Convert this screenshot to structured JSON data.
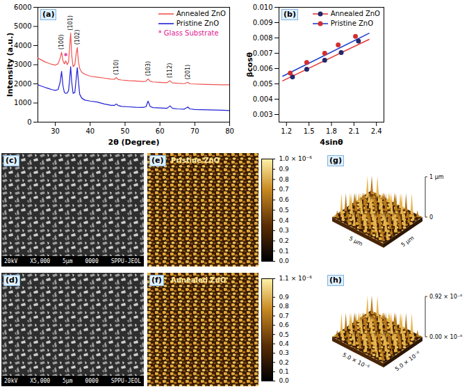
{
  "chart_data": [
    {
      "type": "line",
      "panel_label": "(a)",
      "x_label": "2θ (Degree)",
      "y_label": "Intensity (a.u.)",
      "x": [
        25,
        26,
        27,
        28,
        29,
        30,
        30.8,
        31.4,
        31.8,
        32.2,
        32.6,
        33.0,
        33.4,
        33.8,
        34.1,
        34.4,
        34.7,
        35.1,
        35.6,
        36.0,
        36.3,
        36.6,
        37.0,
        37.6,
        38.5,
        40,
        42,
        44,
        46,
        47,
        47.5,
        48,
        49,
        51,
        53,
        55,
        56,
        56.6,
        57.2,
        58,
        60,
        62,
        62.9,
        63.6,
        65,
        67,
        68,
        68.6,
        70,
        72,
        74,
        76,
        78,
        80
      ],
      "series": [
        {
          "name": "Annealed ZnO",
          "color": "#f0524f",
          "values": [
            3350,
            3250,
            3150,
            3080,
            3020,
            2980,
            3050,
            3350,
            3650,
            3200,
            3050,
            3200,
            3000,
            3150,
            3900,
            4650,
            3500,
            2900,
            3000,
            3600,
            3900,
            3200,
            2800,
            2600,
            2500,
            2400,
            2350,
            2300,
            2250,
            2240,
            2330,
            2230,
            2200,
            2170,
            2150,
            2120,
            2130,
            2260,
            2140,
            2100,
            2080,
            2060,
            2160,
            2050,
            2030,
            2010,
            2080,
            2000,
            1990,
            1980,
            1970,
            1960,
            1950,
            1950
          ]
        },
        {
          "name": "Pristine ZnO",
          "color": "#1f1fd6",
          "values": [
            1950,
            1880,
            1820,
            1760,
            1700,
            1660,
            1700,
            2100,
            2650,
            1900,
            1550,
            1500,
            1520,
            1650,
            2200,
            2900,
            2100,
            1500,
            1550,
            2300,
            2850,
            2200,
            1450,
            1250,
            1150,
            1100,
            1050,
            950,
            880,
            880,
            950,
            870,
            820,
            800,
            780,
            770,
            800,
            1100,
            820,
            760,
            740,
            720,
            850,
            720,
            690,
            680,
            790,
            690,
            660,
            650,
            640,
            630,
            620,
            600
          ]
        }
      ],
      "xlim": [
        25,
        80
      ],
      "xticks": [
        30,
        40,
        50,
        60,
        70,
        80
      ],
      "ylim": [
        0,
        6000
      ],
      "yticks": [
        0,
        1000,
        2000,
        3000,
        4000,
        5000,
        6000
      ],
      "legend": "top-right",
      "annotations": [
        {
          "text": "(100)",
          "x": 31.8
        },
        {
          "text": "*",
          "x": 33.0,
          "color": "#e0208f"
        },
        {
          "text": "(101)",
          "x": 34.4
        },
        {
          "text": "(102)",
          "x": 36.3
        },
        {
          "text": "(110)",
          "x": 47.5
        },
        {
          "text": "(103)",
          "x": 56.6
        },
        {
          "text": "(112)",
          "x": 62.9
        },
        {
          "text": "(201)",
          "x": 68
        }
      ],
      "notes": [
        {
          "text": "* Glass Substrate",
          "color": "#e0208f"
        }
      ]
    },
    {
      "type": "scatter",
      "panel_label": "(b)",
      "x_label": "4sinθ",
      "y_label": "βcosθ",
      "series": [
        {
          "name": "Annealed ZnO",
          "color": "#1f2a6b",
          "marker": "circle",
          "x": [
            1.28,
            1.47,
            1.71,
            1.93,
            2.16
          ],
          "values": [
            0.00545,
            0.00595,
            0.00655,
            0.00705,
            0.0078
          ],
          "fit": {
            "x": [
              1.15,
              2.3
            ],
            "values": [
              0.0052,
              0.0079
            ],
            "color": "#e53935"
          }
        },
        {
          "name": "Pristine ZnO",
          "color": "#d32f2f",
          "marker": "circle",
          "x": [
            1.25,
            1.47,
            1.71,
            1.89,
            2.12
          ],
          "values": [
            0.0057,
            0.0064,
            0.007,
            0.00755,
            0.0081
          ],
          "fit": {
            "x": [
              1.15,
              2.3
            ],
            "values": [
              0.0055,
              0.0083
            ],
            "color": "#1e3fd0"
          }
        }
      ],
      "xlim": [
        1.1,
        2.5
      ],
      "xticks": [
        1.2,
        1.5,
        1.8,
        2.1,
        2.4
      ],
      "ylim": [
        0.0025,
        0.01
      ],
      "yticks": [
        0.003,
        0.004,
        0.005,
        0.006,
        0.007,
        0.008,
        0.009,
        {
          "value": 0.01,
          "label": "0.010"
        }
      ],
      "legend": "top-right"
    }
  ],
  "panels": [
    {
      "label": "(c)",
      "type": "sem",
      "info_bar": [
        "20kV",
        "X5,000",
        "5μm",
        "0000",
        "SPPU-JEOL"
      ]
    },
    {
      "label": "(d)",
      "type": "sem",
      "info_bar": [
        "20kV",
        "X5,000",
        "5μm",
        "0000",
        "SPPU-JEOL"
      ]
    },
    {
      "label": "(e)",
      "type": "afm2d",
      "title": "Pristine ZnO",
      "colorbar": {
        "range": [
          0,
          1.0
        ],
        "ticks": [
          {
            "value": 0,
            "label": "0.0"
          },
          {
            "value": 0.1,
            "label": "0.1"
          },
          {
            "value": 0.2,
            "label": "0.2"
          },
          {
            "value": 0.3,
            "label": "0.3"
          },
          {
            "value": 0.4,
            "label": "0.4"
          },
          {
            "value": 0.5,
            "label": "0.5"
          },
          {
            "value": 0.6,
            "label": "0.6"
          },
          {
            "value": 0.7,
            "label": "0.7"
          },
          {
            "value": 0.8,
            "label": "0.8"
          },
          {
            "value": 0.9,
            "label": "0.9"
          },
          {
            "value": 1.0,
            "label": "1.0 × 10⁻⁶"
          }
        ]
      }
    },
    {
      "label": "(f)",
      "type": "afm2d",
      "title": "Annealed ZnO",
      "colorbar": {
        "range": [
          0,
          1.1
        ],
        "ticks": [
          {
            "value": 0,
            "label": "0.0"
          },
          {
            "value": 0.1,
            "label": "0.1"
          },
          {
            "value": 0.2,
            "label": "0.2"
          },
          {
            "value": 0.3,
            "label": "0.3"
          },
          {
            "value": 0.4,
            "label": "0.4"
          },
          {
            "value": 0.5,
            "label": "0.5"
          },
          {
            "value": 0.6,
            "label": "0.6"
          },
          {
            "value": 0.7,
            "label": "0.7"
          },
          {
            "value": 0.8,
            "label": "0.8"
          },
          {
            "value": 0.9,
            "label": "0.9"
          },
          {
            "value": 1.1,
            "label": "1.1 × 10⁻⁶"
          }
        ]
      }
    },
    {
      "label": "(g)",
      "type": "afm3d",
      "axis_texts": [
        "5 μm",
        "5 μm",
        "1 μm",
        "0"
      ]
    },
    {
      "label": "(h)",
      "type": "afm3d",
      "axis_texts": [
        "5.0 × 10⁻⁶",
        "5.0 × 10⁻⁶",
        "0.92 × 10⁻⁶",
        "0.00 × 10⁻⁶"
      ]
    }
  ]
}
